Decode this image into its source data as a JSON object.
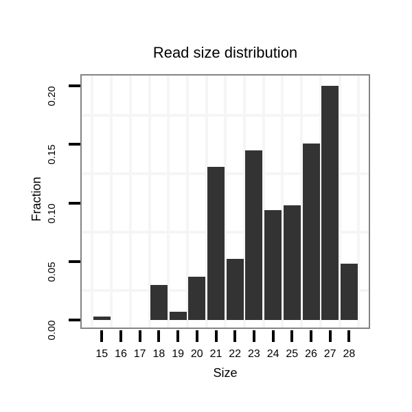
{
  "chart_data": {
    "type": "bar",
    "title": "Read size distribution",
    "xlabel": "Size",
    "ylabel": "Fraction",
    "categories": [
      "15",
      "16",
      "17",
      "18",
      "19",
      "20",
      "21",
      "22",
      "23",
      "24",
      "25",
      "26",
      "27",
      "28"
    ],
    "values": [
      0.003,
      0,
      0,
      0.03,
      0.007,
      0.037,
      0.131,
      0.052,
      0.145,
      0.094,
      0.098,
      0.151,
      0.2,
      0.048
    ],
    "y_ticks": [
      0.0,
      0.05,
      0.1,
      0.15,
      0.2
    ],
    "y_tick_labels": [
      "0.00",
      "0.05",
      "0.10",
      "0.15",
      "0.20"
    ],
    "y_minor_gridlines": [
      0.025,
      0.075,
      0.125,
      0.175
    ],
    "ylim": [
      0,
      0.209
    ],
    "bar_color": "#333333",
    "grid": "on",
    "gridline_color": "#f5f5f5",
    "panel_border_color": "#828282",
    "tick_color": "#000000",
    "legend": "none"
  }
}
